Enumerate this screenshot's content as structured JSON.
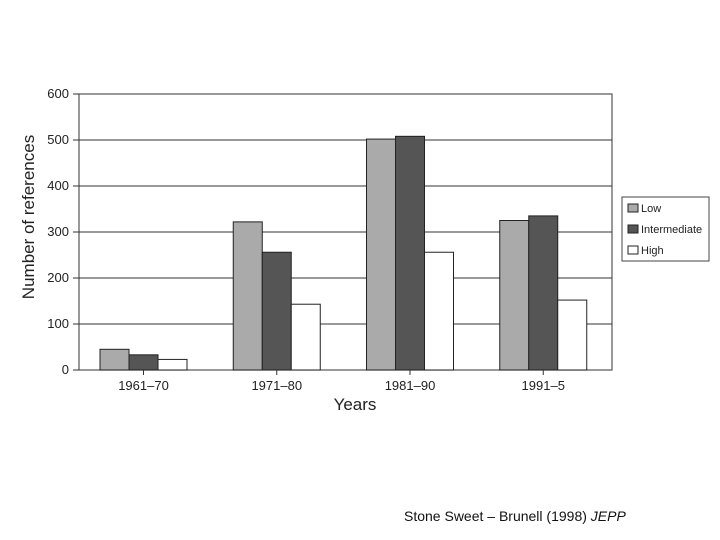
{
  "chart_data": {
    "type": "bar",
    "title": "",
    "xlabel": "Years",
    "ylabel": "Number of references",
    "categories": [
      "1961–70",
      "1971–80",
      "1981–90",
      "1991–5"
    ],
    "ylim": [
      0,
      600
    ],
    "yticks": [
      "0",
      "100",
      "200",
      "300",
      "400",
      "500",
      "600"
    ],
    "grid": true,
    "legend_position": "right",
    "series": [
      {
        "name": "Low",
        "values": [
          45,
          322,
          502,
          325
        ],
        "color": "#aaaaaa"
      },
      {
        "name": "Intermediate",
        "values": [
          33,
          256,
          508,
          335
        ],
        "color": "#555555"
      },
      {
        "name": "High",
        "values": [
          23,
          143,
          256,
          152
        ],
        "color": "#ffffff"
      }
    ]
  },
  "caption": {
    "text": "Stone Sweet – Brunell (1998)",
    "journal": "JEPP"
  }
}
